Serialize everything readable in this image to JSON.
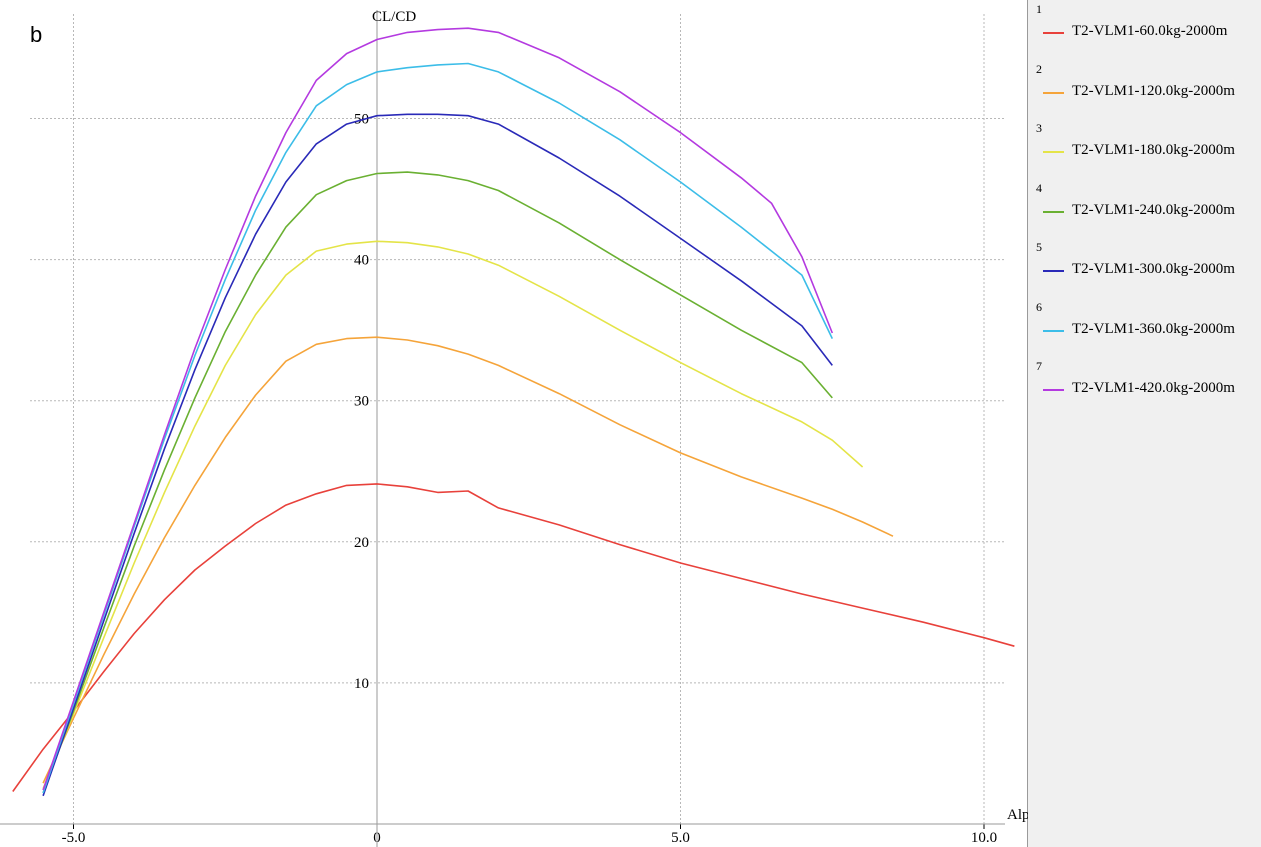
{
  "panel_label": "b",
  "chart_data": {
    "type": "line",
    "xlabel": "Alp",
    "ylabel": "CL/CD",
    "xlim": [
      -6.1,
      10.5
    ],
    "ylim": [
      0,
      57
    ],
    "xticks": [
      -5.0,
      0,
      5.0,
      10.0
    ],
    "xtick_labels": [
      "-5.0",
      "0",
      "5.0",
      "10.0"
    ],
    "yticks": [
      10,
      20,
      30,
      40,
      50
    ],
    "ytick_labels": [
      "10",
      "20",
      "30",
      "40",
      "50"
    ],
    "grid": true,
    "legend_position": "right",
    "series": [
      {
        "name": "T2-VLM1-60.0kg-2000m",
        "num": "1",
        "color": "#e8413b",
        "points": [
          [
            -6.0,
            2.3
          ],
          [
            -5.5,
            5.3
          ],
          [
            -5.0,
            8.0
          ],
          [
            -4.5,
            10.8
          ],
          [
            -4.0,
            13.5
          ],
          [
            -3.5,
            15.9
          ],
          [
            -3.0,
            18.0
          ],
          [
            -2.5,
            19.7
          ],
          [
            -2.0,
            21.3
          ],
          [
            -1.5,
            22.6
          ],
          [
            -1.0,
            23.4
          ],
          [
            -0.5,
            24.0
          ],
          [
            0.0,
            24.1
          ],
          [
            0.5,
            23.9
          ],
          [
            1.0,
            23.5
          ],
          [
            1.5,
            23.6
          ],
          [
            2.0,
            22.4
          ],
          [
            3.0,
            21.2
          ],
          [
            4.0,
            19.8
          ],
          [
            5.0,
            18.5
          ],
          [
            6.0,
            17.4
          ],
          [
            7.0,
            16.3
          ],
          [
            8.0,
            15.3
          ],
          [
            9.0,
            14.3
          ],
          [
            10.0,
            13.2
          ],
          [
            10.5,
            12.6
          ]
        ]
      },
      {
        "name": "T2-VLM1-120.0kg-2000m",
        "num": "2",
        "color": "#f5a43a",
        "points": [
          [
            -5.5,
            2.9
          ],
          [
            -5.0,
            7.5
          ],
          [
            -4.5,
            12.0
          ],
          [
            -4.0,
            16.3
          ],
          [
            -3.5,
            20.3
          ],
          [
            -3.0,
            24.0
          ],
          [
            -2.5,
            27.4
          ],
          [
            -2.0,
            30.4
          ],
          [
            -1.5,
            32.8
          ],
          [
            -1.0,
            34.0
          ],
          [
            -0.5,
            34.4
          ],
          [
            0.0,
            34.5
          ],
          [
            0.5,
            34.3
          ],
          [
            1.0,
            33.9
          ],
          [
            1.5,
            33.3
          ],
          [
            2.0,
            32.5
          ],
          [
            3.0,
            30.5
          ],
          [
            4.0,
            28.3
          ],
          [
            5.0,
            26.3
          ],
          [
            6.0,
            24.6
          ],
          [
            7.0,
            23.1
          ],
          [
            7.5,
            22.3
          ],
          [
            8.0,
            21.4
          ],
          [
            8.5,
            20.4
          ]
        ]
      },
      {
        "name": "T2-VLM1-180.0kg-2000m",
        "num": "3",
        "color": "#e4e448",
        "points": [
          [
            -5.5,
            2.5
          ],
          [
            -5.0,
            7.8
          ],
          [
            -4.5,
            13.2
          ],
          [
            -4.0,
            18.5
          ],
          [
            -3.5,
            23.5
          ],
          [
            -3.0,
            28.2
          ],
          [
            -2.5,
            32.5
          ],
          [
            -2.0,
            36.1
          ],
          [
            -1.5,
            38.9
          ],
          [
            -1.0,
            40.6
          ],
          [
            -0.5,
            41.1
          ],
          [
            0.0,
            41.3
          ],
          [
            0.5,
            41.2
          ],
          [
            1.0,
            40.9
          ],
          [
            1.5,
            40.4
          ],
          [
            2.0,
            39.6
          ],
          [
            3.0,
            37.4
          ],
          [
            4.0,
            35.0
          ],
          [
            5.0,
            32.7
          ],
          [
            6.0,
            30.5
          ],
          [
            7.0,
            28.5
          ],
          [
            7.5,
            27.2
          ],
          [
            8.0,
            25.3
          ]
        ]
      },
      {
        "name": "T2-VLM1-240.0kg-2000m",
        "num": "4",
        "color": "#6ab032",
        "points": [
          [
            -5.5,
            2.2
          ],
          [
            -5.0,
            8.0
          ],
          [
            -4.5,
            13.9
          ],
          [
            -4.0,
            19.7
          ],
          [
            -3.5,
            25.1
          ],
          [
            -3.0,
            30.2
          ],
          [
            -2.5,
            34.9
          ],
          [
            -2.0,
            38.9
          ],
          [
            -1.5,
            42.3
          ],
          [
            -1.0,
            44.6
          ],
          [
            -0.5,
            45.6
          ],
          [
            0.0,
            46.1
          ],
          [
            0.5,
            46.2
          ],
          [
            1.0,
            46.0
          ],
          [
            1.5,
            45.6
          ],
          [
            2.0,
            44.9
          ],
          [
            3.0,
            42.6
          ],
          [
            4.0,
            40.0
          ],
          [
            5.0,
            37.5
          ],
          [
            6.0,
            35.0
          ],
          [
            7.0,
            32.7
          ],
          [
            7.5,
            30.2
          ]
        ]
      },
      {
        "name": "T2-VLM1-300.0kg-2000m",
        "num": "5",
        "color": "#2a2ab8",
        "points": [
          [
            -5.5,
            2.0
          ],
          [
            -5.0,
            8.2
          ],
          [
            -4.5,
            14.4
          ],
          [
            -4.0,
            20.6
          ],
          [
            -3.5,
            26.6
          ],
          [
            -3.0,
            32.2
          ],
          [
            -2.5,
            37.3
          ],
          [
            -2.0,
            41.8
          ],
          [
            -1.5,
            45.5
          ],
          [
            -1.0,
            48.2
          ],
          [
            -0.5,
            49.6
          ],
          [
            0.0,
            50.2
          ],
          [
            0.5,
            50.3
          ],
          [
            1.0,
            50.3
          ],
          [
            1.5,
            50.2
          ],
          [
            2.0,
            49.6
          ],
          [
            3.0,
            47.2
          ],
          [
            4.0,
            44.5
          ],
          [
            5.0,
            41.5
          ],
          [
            6.0,
            38.5
          ],
          [
            7.0,
            35.3
          ],
          [
            7.5,
            32.5
          ]
        ]
      },
      {
        "name": "T2-VLM1-360.0kg-2000m",
        "num": "6",
        "color": "#3cbde8",
        "points": [
          [
            -5.5,
            2.2
          ],
          [
            -5.0,
            8.5
          ],
          [
            -4.5,
            14.8
          ],
          [
            -4.0,
            21.1
          ],
          [
            -3.5,
            27.3
          ],
          [
            -3.0,
            33.2
          ],
          [
            -2.5,
            38.6
          ],
          [
            -2.0,
            43.5
          ],
          [
            -1.5,
            47.6
          ],
          [
            -1.0,
            50.9
          ],
          [
            -0.5,
            52.4
          ],
          [
            0.0,
            53.3
          ],
          [
            0.5,
            53.6
          ],
          [
            1.0,
            53.8
          ],
          [
            1.5,
            53.9
          ],
          [
            2.0,
            53.3
          ],
          [
            3.0,
            51.1
          ],
          [
            4.0,
            48.5
          ],
          [
            5.0,
            45.5
          ],
          [
            6.0,
            42.3
          ],
          [
            7.0,
            38.9
          ],
          [
            7.5,
            34.4
          ]
        ]
      },
      {
        "name": "T2-VLM1-420.0kg-2000m",
        "num": "7",
        "color": "#b43ae0",
        "points": [
          [
            -5.5,
            2.4
          ],
          [
            -5.0,
            8.7
          ],
          [
            -4.5,
            15.0
          ],
          [
            -4.0,
            21.3
          ],
          [
            -3.5,
            27.6
          ],
          [
            -3.0,
            33.7
          ],
          [
            -2.5,
            39.3
          ],
          [
            -2.0,
            44.5
          ],
          [
            -1.5,
            49.0
          ],
          [
            -1.0,
            52.7
          ],
          [
            -0.5,
            54.6
          ],
          [
            0.0,
            55.6
          ],
          [
            0.5,
            56.1
          ],
          [
            1.0,
            56.3
          ],
          [
            1.5,
            56.4
          ],
          [
            2.0,
            56.1
          ],
          [
            3.0,
            54.3
          ],
          [
            4.0,
            51.9
          ],
          [
            5.0,
            49.0
          ],
          [
            6.0,
            45.8
          ],
          [
            6.5,
            44.0
          ],
          [
            7.0,
            40.2
          ],
          [
            7.5,
            34.8
          ]
        ]
      }
    ]
  }
}
